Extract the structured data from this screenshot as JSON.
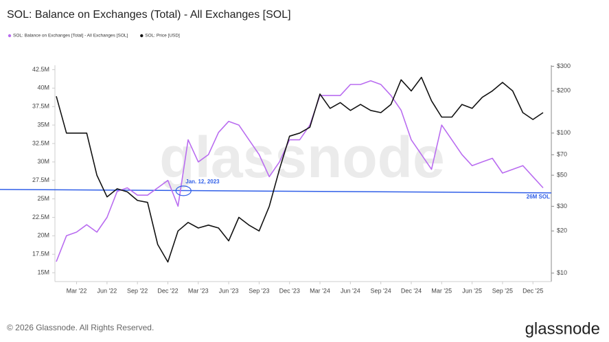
{
  "chart_data": {
    "type": "line",
    "title": "SOL: Balance on Exchanges (Total) - All Exchanges [SOL]",
    "watermark": "glassnode",
    "footer": "© 2026 Glassnode. All Rights Reserved.",
    "logo": "glassnode",
    "x": [
      "2022-01",
      "2022-02",
      "2022-03",
      "2022-04",
      "2022-05",
      "2022-06",
      "2022-07",
      "2022-08",
      "2022-09",
      "2022-10",
      "2022-11",
      "2022-12",
      "2023-01",
      "2023-02",
      "2023-03",
      "2023-04",
      "2023-05",
      "2023-06",
      "2023-07",
      "2023-08",
      "2023-09",
      "2023-10",
      "2023-11",
      "2023-12",
      "2024-01",
      "2024-02",
      "2024-03",
      "2024-04",
      "2024-05",
      "2024-06",
      "2024-07",
      "2024-08",
      "2024-09",
      "2024-10",
      "2024-11",
      "2024-12",
      "2025-01",
      "2025-02",
      "2025-03",
      "2025-04",
      "2025-05",
      "2025-06",
      "2025-07",
      "2025-08",
      "2025-09",
      "2025-10",
      "2025-11",
      "2025-12",
      "2026-01"
    ],
    "xlim": [
      "2022-01",
      "2026-01"
    ],
    "xticks": [
      {
        "value": "2022-03",
        "label": "Mar '22"
      },
      {
        "value": "2022-06",
        "label": "Jun '22"
      },
      {
        "value": "2022-09",
        "label": "Sep '22"
      },
      {
        "value": "2022-12",
        "label": "Dec '22"
      },
      {
        "value": "2023-03",
        "label": "Mar '23"
      },
      {
        "value": "2023-06",
        "label": "Jun '23"
      },
      {
        "value": "2023-09",
        "label": "Sep '23"
      },
      {
        "value": "2023-12",
        "label": "Dec '23"
      },
      {
        "value": "2024-03",
        "label": "Mar '24"
      },
      {
        "value": "2024-06",
        "label": "Jun '24"
      },
      {
        "value": "2024-09",
        "label": "Sep '24"
      },
      {
        "value": "2024-12",
        "label": "Dec '24"
      },
      {
        "value": "2025-03",
        "label": "Mar '25"
      },
      {
        "value": "2025-06",
        "label": "Jun '25"
      },
      {
        "value": "2025-09",
        "label": "Sep '25"
      },
      {
        "value": "2025-12",
        "label": "Dec '25"
      }
    ],
    "ylim": [
      13800000,
      43100000
    ],
    "yticks": [
      {
        "value": 15000000,
        "label": "15M"
      },
      {
        "value": 17500000,
        "label": "17.5M"
      },
      {
        "value": 20000000,
        "label": "20M"
      },
      {
        "value": 22500000,
        "label": "22.5M"
      },
      {
        "value": 25000000,
        "label": "25M"
      },
      {
        "value": 27500000,
        "label": "27.5M"
      },
      {
        "value": 30000000,
        "label": "30M"
      },
      {
        "value": 32500000,
        "label": "32.5M"
      },
      {
        "value": 35000000,
        "label": "35M"
      },
      {
        "value": 37500000,
        "label": "37.5M"
      },
      {
        "value": 40000000,
        "label": "40M"
      },
      {
        "value": 42500000,
        "label": "42.5M"
      }
    ],
    "y2lim": [
      8.7,
      305
    ],
    "y2log": true,
    "y2ticks": [
      {
        "value": 10,
        "label": "$10"
      },
      {
        "value": 20,
        "label": "$20"
      },
      {
        "value": 30,
        "label": "$30"
      },
      {
        "value": 50,
        "label": "$50"
      },
      {
        "value": 70,
        "label": "$70"
      },
      {
        "value": 100,
        "label": "$100"
      },
      {
        "value": 200,
        "label": "$200"
      },
      {
        "value": 300,
        "label": "$300"
      }
    ],
    "series": [
      {
        "name": "SOL: Balance on Exchanges [Total] - All Exchanges [SOL]",
        "color": "#b96cf0",
        "axis": "y",
        "values": [
          16500000,
          20000000,
          20500000,
          21500000,
          20500000,
          22500000,
          26000000,
          26500000,
          25500000,
          25500000,
          26500000,
          27500000,
          24000000,
          33000000,
          30000000,
          31000000,
          34000000,
          35500000,
          35000000,
          33000000,
          31000000,
          28000000,
          30000000,
          33000000,
          33000000,
          35000000,
          39000000,
          39000000,
          39000000,
          40500000,
          40500000,
          41000000,
          40500000,
          39000000,
          37000000,
          33000000,
          31000000,
          29000000,
          35000000,
          33000000,
          31000000,
          29500000,
          30000000,
          30500000,
          28500000,
          29000000,
          29500000,
          28000000,
          26500000
        ]
      },
      {
        "name": "SOL: Price [USD]",
        "color": "#111111",
        "axis": "y2",
        "values": [
          183,
          100,
          100,
          100,
          50,
          35,
          40,
          38,
          33,
          32,
          16,
          12,
          20,
          23,
          21,
          22,
          21,
          17,
          25,
          22,
          20,
          30,
          55,
          95,
          100,
          110,
          190,
          150,
          165,
          145,
          160,
          145,
          140,
          160,
          240,
          200,
          250,
          170,
          130,
          130,
          160,
          150,
          180,
          200,
          230,
          200,
          140,
          125,
          140
        ]
      }
    ],
    "reference_line": {
      "value": 26000000,
      "label": "26M SOL",
      "color": "#2f5ee8"
    },
    "annotation": {
      "text": "Jan. 12, 2023",
      "x": "2023-01"
    }
  }
}
